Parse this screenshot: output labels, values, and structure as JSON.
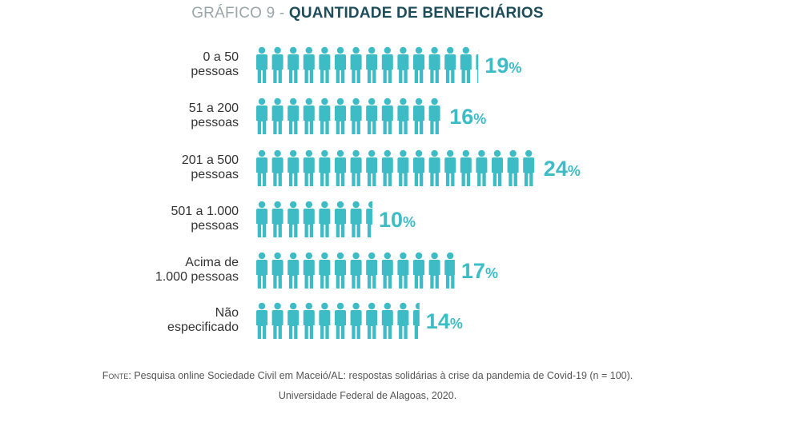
{
  "chart_data": {
    "type": "pictogram",
    "title_prefix": "GRÁFICO 9 - ",
    "title": "QUANTIDADE DE BENEFICIÁRIOS",
    "unit_per_icon_percent": 1.3333,
    "categories": [
      [
        "0 a 50",
        "pessoas"
      ],
      [
        "51 a 200",
        "pessoas"
      ],
      [
        "201 a 500",
        "pessoas"
      ],
      [
        "501 a 1.000",
        "pessoas"
      ],
      [
        "Acima de",
        "1.000 pessoas"
      ],
      [
        "Não",
        "especificado"
      ]
    ],
    "values": [
      19,
      16,
      24,
      10,
      17,
      14
    ],
    "value_suffix": "%",
    "color": "#3dbcc5"
  },
  "source": {
    "label": "Fonte",
    "line1": ": Pesquisa online Sociedade Civil em Maceió/AL: respostas solidárias à crise da pandemia de Covid-19 (n = 100).",
    "line2": "Universidade Federal de Alagoas, 2020."
  }
}
